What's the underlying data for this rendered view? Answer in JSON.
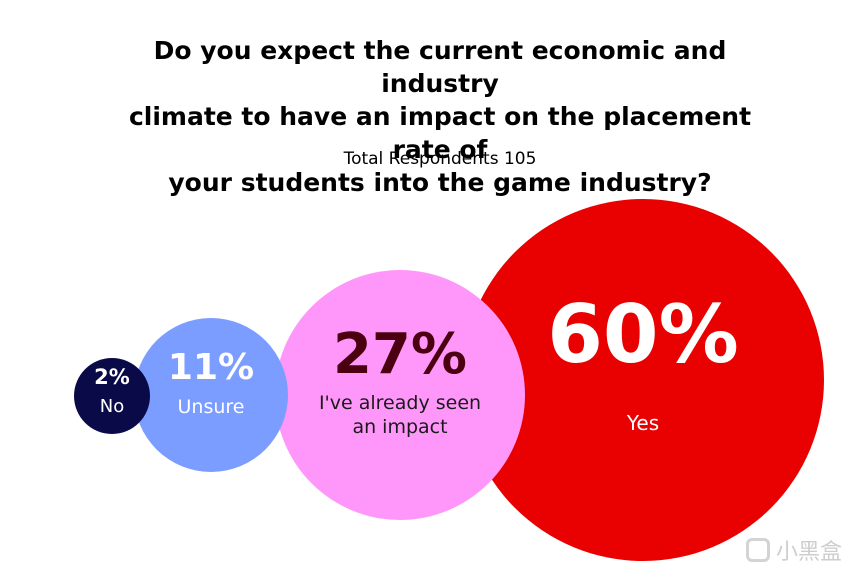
{
  "title_lines": [
    "Do you expect the current economic and industry",
    "climate to have an impact on the placement rate of",
    "your students into the game industry?"
  ],
  "subtitle": "Total Respondents 105",
  "watermark": "小黑盒",
  "chart_data": {
    "type": "bubble",
    "title": "Do you expect the current economic and industry climate to have an impact on the placement rate of your students into the game industry?",
    "subtitle": "Total Respondents 105",
    "unit": "%",
    "points": [
      {
        "value": 2,
        "label": "2%",
        "category": [
          "No"
        ],
        "color": "#0b0a48",
        "pct_color": "#ffffff",
        "label_color": "#ffffff"
      },
      {
        "value": 11,
        "label": "11%",
        "category": [
          "Unsure"
        ],
        "color": "#7b9dff",
        "pct_color": "#ffffff",
        "label_color": "#ffffff"
      },
      {
        "value": 27,
        "label": "27%",
        "category": [
          "I've already seen",
          "an impact"
        ],
        "color": "#ff97fa",
        "pct_color": "#4a0010",
        "label_color": "#1a1a1a"
      },
      {
        "value": 60,
        "label": "60%",
        "category": [
          "Yes"
        ],
        "color": "#e90000",
        "pct_color": "#ffffff",
        "label_color": "#ffffff"
      }
    ]
  }
}
